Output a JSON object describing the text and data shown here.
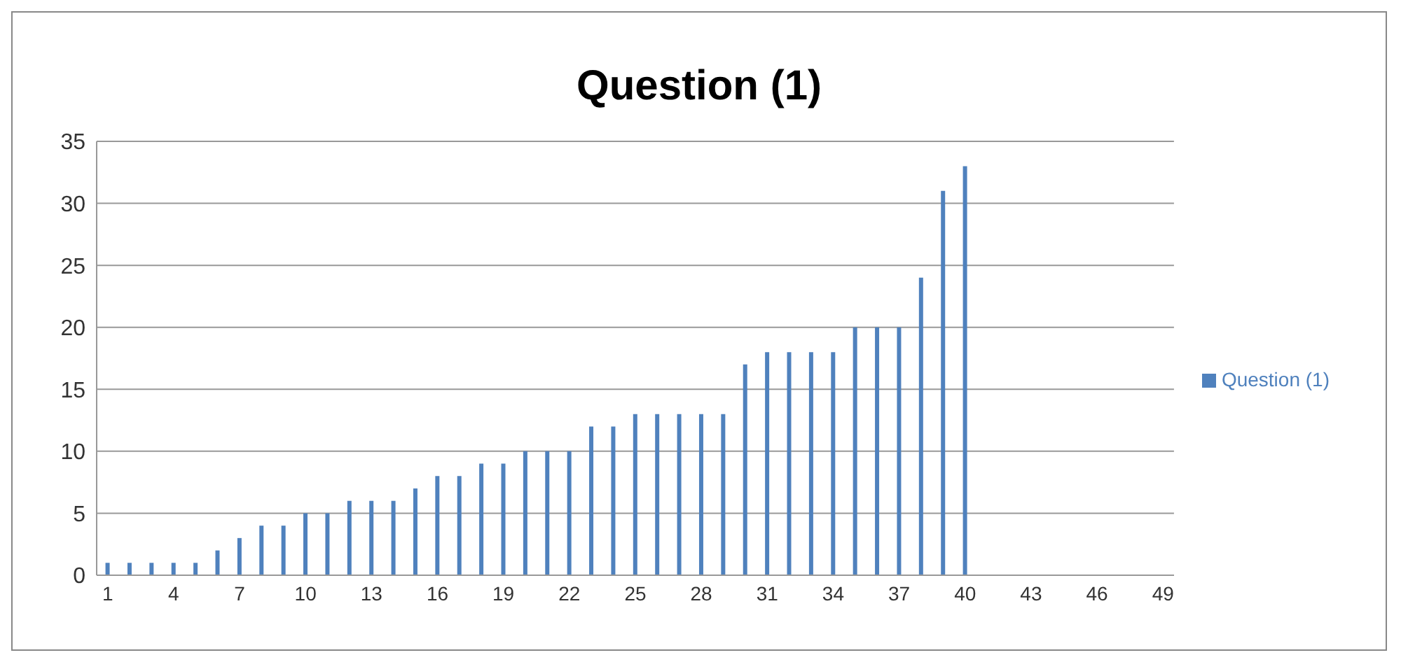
{
  "chart_data": {
    "type": "bar",
    "title": "Question (1)",
    "categories": [
      "1",
      null,
      null,
      "4",
      null,
      null,
      "7",
      null,
      null,
      "10",
      null,
      null,
      "13",
      null,
      null,
      "16",
      null,
      null,
      "19",
      null,
      null,
      "22",
      null,
      null,
      "25",
      null,
      null,
      "28",
      null,
      null,
      "31",
      null,
      null,
      "34",
      null,
      null,
      "37",
      null,
      null,
      "40",
      null,
      null,
      "43",
      null,
      null,
      "46",
      null,
      null,
      "49"
    ],
    "series": [
      {
        "name": "Question (1)",
        "color": "#4f81bd",
        "values": [
          1,
          1,
          1,
          1,
          1,
          2,
          3,
          4,
          4,
          5,
          5,
          6,
          6,
          6,
          7,
          8,
          8,
          9,
          9,
          10,
          10,
          10,
          12,
          12,
          13,
          13,
          13,
          13,
          13,
          17,
          18,
          18,
          18,
          18,
          20,
          20,
          20,
          24,
          31,
          33,
          null,
          null,
          null,
          null,
          null,
          null,
          null,
          null,
          null
        ]
      }
    ],
    "ylim": [
      0,
      35
    ],
    "yticks": [
      0,
      5,
      10,
      15,
      20,
      25,
      30,
      35
    ],
    "grid": "y",
    "legend": "right"
  }
}
